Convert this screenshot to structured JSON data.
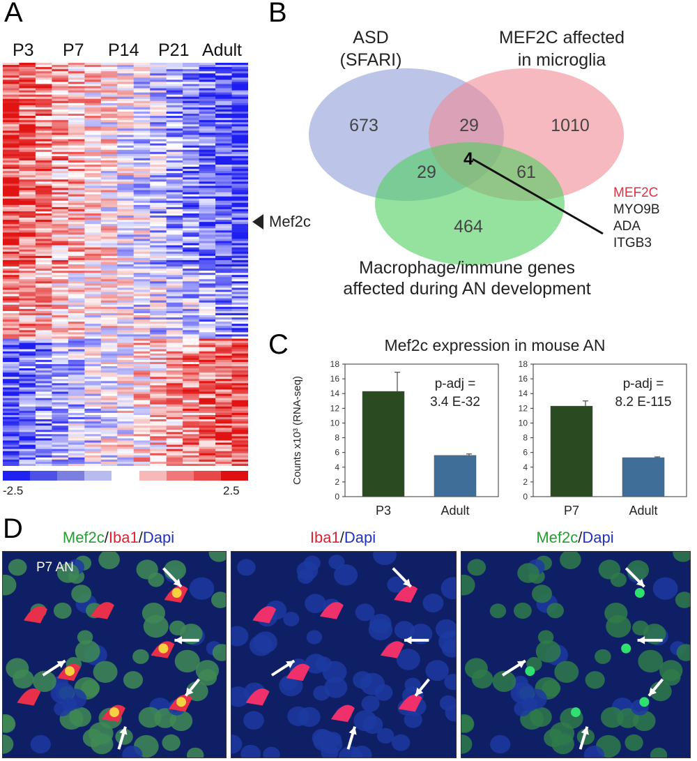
{
  "panels": {
    "A": {
      "letter": "A",
      "timepoints": [
        "P3",
        "P7",
        "P14",
        "P21",
        "Adult"
      ],
      "marker_label": "Mef2c",
      "colorbar": {
        "min_label": "-2.5",
        "max_label": "2.5",
        "colors": [
          "#1f22f0",
          "#4d52e6",
          "#7b80e0",
          "#b8bbf0",
          "#ffffff",
          "#f8b8b8",
          "#f07878",
          "#e84848",
          "#e01010"
        ]
      }
    },
    "B": {
      "letter": "B",
      "sets": {
        "asd": {
          "label_line1": "ASD",
          "label_line2": "(SFARI)",
          "color": "#8f9fd8"
        },
        "mef2c": {
          "label_line1": "MEF2C affected",
          "label_line2": "in microglia",
          "color": "#f08a96"
        },
        "macro": {
          "label_line1": "Macrophage/immune genes",
          "label_line2": "affected during AN development",
          "color": "#4fcf5f"
        }
      },
      "counts": {
        "asd_only": "673",
        "mef2c_only": "1010",
        "macro_only": "464",
        "asd_mef2c": "29",
        "asd_macro": "29",
        "mef2c_macro": "61",
        "all_three": "4"
      },
      "genes": [
        {
          "name": "MEF2C",
          "color": "#e03040"
        },
        {
          "name": "MYO9B",
          "color": "#222222"
        },
        {
          "name": "ADA",
          "color": "#222222"
        },
        {
          "name": "ITGB3",
          "color": "#222222"
        }
      ]
    },
    "C": {
      "letter": "C",
      "title": "Mef2c expression in mouse AN",
      "ylabel": "Counts x10³ (RNA-seq)"
    },
    "D": {
      "letter": "D",
      "captions": [
        [
          {
            "text": "Mef2c",
            "color": "#22a030"
          },
          {
            "text": "/",
            "color": "#222"
          },
          {
            "text": "Iba1",
            "color": "#e02030"
          },
          {
            "text": "/",
            "color": "#222"
          },
          {
            "text": "Dapi",
            "color": "#2030c0"
          }
        ],
        [
          {
            "text": "Iba1",
            "color": "#e02030"
          },
          {
            "text": "/",
            "color": "#222"
          },
          {
            "text": "Dapi",
            "color": "#2030c0"
          }
        ],
        [
          {
            "text": "Mef2c",
            "color": "#22a030"
          },
          {
            "text": "/",
            "color": "#222"
          },
          {
            "text": "Dapi",
            "color": "#2030c0"
          }
        ]
      ],
      "inset_label": "P7 AN"
    }
  },
  "chart_data": [
    {
      "type": "bar",
      "categories": [
        "P3",
        "Adult"
      ],
      "values": [
        14.3,
        5.6
      ],
      "errors": [
        2.6,
        0.2
      ],
      "colors": [
        "#2a4a22",
        "#3f6e98"
      ],
      "annotation_line1": "p-adj =",
      "annotation_line2": "3.4 E-32",
      "ylabel": "Counts x10³ (RNA-seq)",
      "ylim": [
        0,
        18
      ],
      "yticks": [
        "0",
        "2",
        "4",
        "6",
        "8",
        "10",
        "12",
        "14",
        "16",
        "18"
      ]
    },
    {
      "type": "bar",
      "categories": [
        "P7",
        "Adult"
      ],
      "values": [
        12.3,
        5.3
      ],
      "errors": [
        0.7,
        0.1
      ],
      "colors": [
        "#2a4a22",
        "#3f6e98"
      ],
      "annotation_line1": "p-adj =",
      "annotation_line2": "8.2 E-115",
      "ylim": [
        0,
        18
      ],
      "yticks": [
        "0",
        "2",
        "4",
        "6",
        "8",
        "10",
        "12",
        "14",
        "16",
        "18"
      ]
    }
  ]
}
